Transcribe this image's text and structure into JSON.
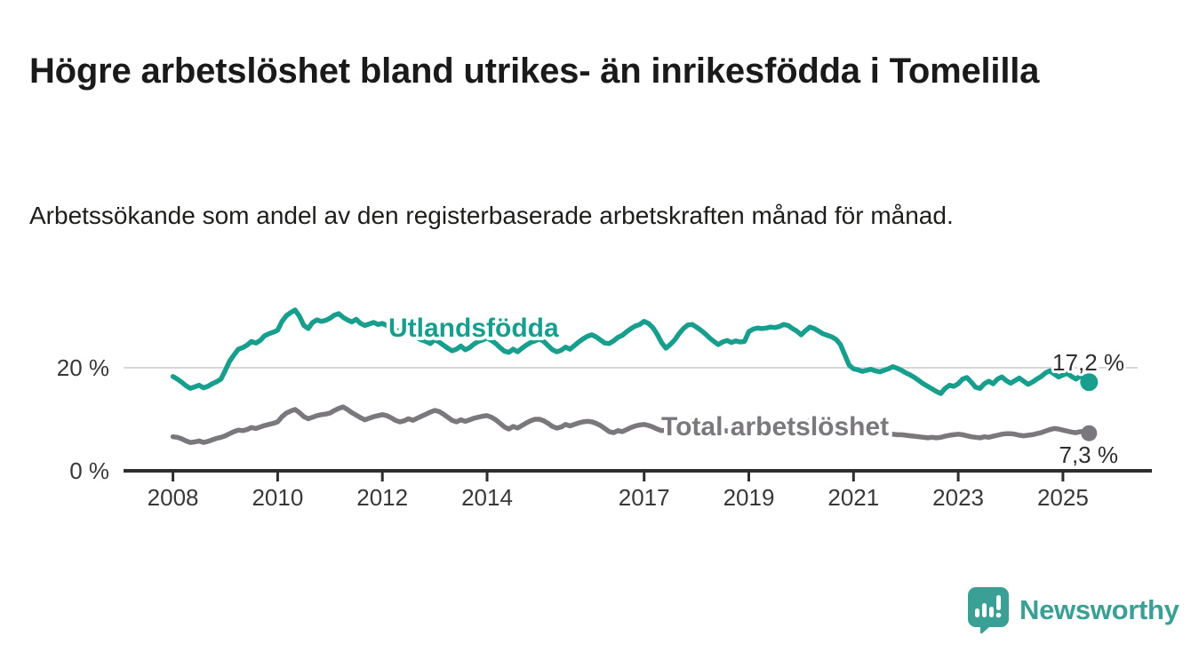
{
  "title": "Högre arbetslöshet bland utrikes- än inrikesfödda i Tomelilla",
  "subtitle": "Arbetssökande som andel av den registerbaserade arbetskraften månad för månad.",
  "branding": {
    "logo_text": "Newsworthy",
    "logo_color": "#3aa095",
    "logo_icon": "bar-chart-speech-bubble"
  },
  "colors": {
    "foreign_born_line": "#179e8d",
    "total_line": "#7a787c",
    "axis": "#2e2e2e",
    "gridline": "#d8d8d8",
    "text": "#1a1a1a"
  },
  "chart_data": {
    "type": "line",
    "unit": "%",
    "frequency": "monthly",
    "x_start": "2008-01",
    "x_end": "2025-07",
    "grid": "horizontal gridline at 20% only",
    "legend_position": "inline labels on lines",
    "ylim": [
      0,
      33
    ],
    "y_ticks": [
      0,
      20
    ],
    "y_tick_labels": [
      "0 %",
      "20 %"
    ],
    "x_tick_labels": [
      "2008",
      "2010",
      "2012",
      "2014",
      "2017",
      "2019",
      "2021",
      "2023",
      "2025"
    ],
    "series": [
      {
        "name": "Utlandsfödda",
        "color": "#179e8d",
        "end_value": 17.2,
        "end_label": "17,2 %",
        "values": [
          18.3,
          17.8,
          17.2,
          16.5,
          16.0,
          16.3,
          16.6,
          16.1,
          16.4,
          16.9,
          17.3,
          17.8,
          19.5,
          21.3,
          22.5,
          23.6,
          23.9,
          24.4,
          25.1,
          24.8,
          25.3,
          26.2,
          26.6,
          26.9,
          27.3,
          29.0,
          30.1,
          30.7,
          31.2,
          30.0,
          28.2,
          27.6,
          28.8,
          29.3,
          29.0,
          29.2,
          29.6,
          30.2,
          30.5,
          29.8,
          29.3,
          28.9,
          29.4,
          28.6,
          28.2,
          28.5,
          28.8,
          28.4,
          28.6,
          28.2,
          27.8,
          27.4,
          27.1,
          26.7,
          27.3,
          26.4,
          25.8,
          25.4,
          25.1,
          24.7,
          25.5,
          25.0,
          24.4,
          23.8,
          23.3,
          23.6,
          24.2,
          23.5,
          23.9,
          24.6,
          25.1,
          25.4,
          25.8,
          25.3,
          24.7,
          23.9,
          23.2,
          23.0,
          23.6,
          23.1,
          23.8,
          24.4,
          24.9,
          25.2,
          25.6,
          25.1,
          24.3,
          23.5,
          23.1,
          23.4,
          24.0,
          23.6,
          24.3,
          25.0,
          25.6,
          26.1,
          26.4,
          26.0,
          25.4,
          24.8,
          24.7,
          25.2,
          25.9,
          26.3,
          27.0,
          27.6,
          28.1,
          28.4,
          29.0,
          28.6,
          27.8,
          26.5,
          24.9,
          23.8,
          24.5,
          25.4,
          26.6,
          27.6,
          28.3,
          28.4,
          27.9,
          27.3,
          26.6,
          25.8,
          25.1,
          24.5,
          25.0,
          25.3,
          24.9,
          25.2,
          25.0,
          25.1,
          27.0,
          27.5,
          27.7,
          27.6,
          27.7,
          27.9,
          27.8,
          28.0,
          28.4,
          28.2,
          27.6,
          27.1,
          26.4,
          27.2,
          27.9,
          27.6,
          27.1,
          26.6,
          26.3,
          26.0,
          25.5,
          24.5,
          22.5,
          20.5,
          19.8,
          19.6,
          19.3,
          19.5,
          19.7,
          19.4,
          19.2,
          19.5,
          19.8,
          20.2,
          19.9,
          19.5,
          19.0,
          18.6,
          18.1,
          17.5,
          16.9,
          16.4,
          15.9,
          15.4,
          15.0,
          16.0,
          16.6,
          16.4,
          16.9,
          17.8,
          18.1,
          17.2,
          16.2,
          16.0,
          16.9,
          17.4,
          16.9,
          17.8,
          18.2,
          17.5,
          17.0,
          17.5,
          18.0,
          17.4,
          16.8,
          17.2,
          17.8,
          18.3,
          19.0,
          19.4,
          18.8,
          18.2,
          18.6,
          18.9,
          18.3,
          17.8,
          18.4,
          17.8,
          17.2
        ]
      },
      {
        "name": "Total arbetslöshet",
        "color": "#7a787c",
        "end_value": 7.3,
        "end_label": "7,3 %",
        "values": [
          6.6,
          6.5,
          6.2,
          5.8,
          5.5,
          5.6,
          5.8,
          5.5,
          5.7,
          6.0,
          6.3,
          6.5,
          6.8,
          7.2,
          7.6,
          7.9,
          7.8,
          8.0,
          8.4,
          8.2,
          8.5,
          8.8,
          9.0,
          9.2,
          9.5,
          10.5,
          11.2,
          11.6,
          11.9,
          11.3,
          10.5,
          10.1,
          10.4,
          10.7,
          10.9,
          11.0,
          11.2,
          11.7,
          12.1,
          12.4,
          11.9,
          11.3,
          10.8,
          10.3,
          9.9,
          10.2,
          10.5,
          10.7,
          10.9,
          10.7,
          10.3,
          9.8,
          9.5,
          9.7,
          10.1,
          9.8,
          10.2,
          10.6,
          11.0,
          11.4,
          11.7,
          11.5,
          11.0,
          10.4,
          9.8,
          9.5,
          9.9,
          9.6,
          9.9,
          10.2,
          10.4,
          10.6,
          10.7,
          10.4,
          9.9,
          9.2,
          8.5,
          8.1,
          8.6,
          8.3,
          8.8,
          9.3,
          9.7,
          10.0,
          10.0,
          9.7,
          9.2,
          8.6,
          8.3,
          8.5,
          9.0,
          8.7,
          9.0,
          9.3,
          9.5,
          9.6,
          9.5,
          9.2,
          8.8,
          8.2,
          7.6,
          7.4,
          7.8,
          7.6,
          8.0,
          8.4,
          8.7,
          8.9,
          9.0,
          8.8,
          8.5,
          8.1,
          7.8,
          7.9,
          8.3,
          8.1,
          8.4,
          8.7,
          8.9,
          9.0,
          9.0,
          8.8,
          8.5,
          8.1,
          7.8,
          7.6,
          7.9,
          7.7,
          7.9,
          8.1,
          8.3,
          8.4,
          8.5,
          8.4,
          8.2,
          8.0,
          7.9,
          8.0,
          8.2,
          8.1,
          8.3,
          8.5,
          8.7,
          8.9,
          9.2,
          9.5,
          9.8,
          10.0,
          9.9,
          9.7,
          9.5,
          9.3,
          9.1,
          8.9,
          8.7,
          8.5,
          8.4,
          8.3,
          8.1,
          7.9,
          7.7,
          7.5,
          7.4,
          7.3,
          7.2,
          7.1,
          7.0,
          7.0,
          6.9,
          6.8,
          6.7,
          6.6,
          6.5,
          6.4,
          6.5,
          6.4,
          6.5,
          6.7,
          6.9,
          7.0,
          7.1,
          7.0,
          6.8,
          6.6,
          6.5,
          6.4,
          6.6,
          6.5,
          6.7,
          6.9,
          7.1,
          7.2,
          7.2,
          7.1,
          6.9,
          6.8,
          6.9,
          7.0,
          7.2,
          7.4,
          7.7,
          8.0,
          8.2,
          8.1,
          7.9,
          7.7,
          7.5,
          7.4,
          7.6,
          7.5,
          7.3
        ]
      }
    ]
  }
}
